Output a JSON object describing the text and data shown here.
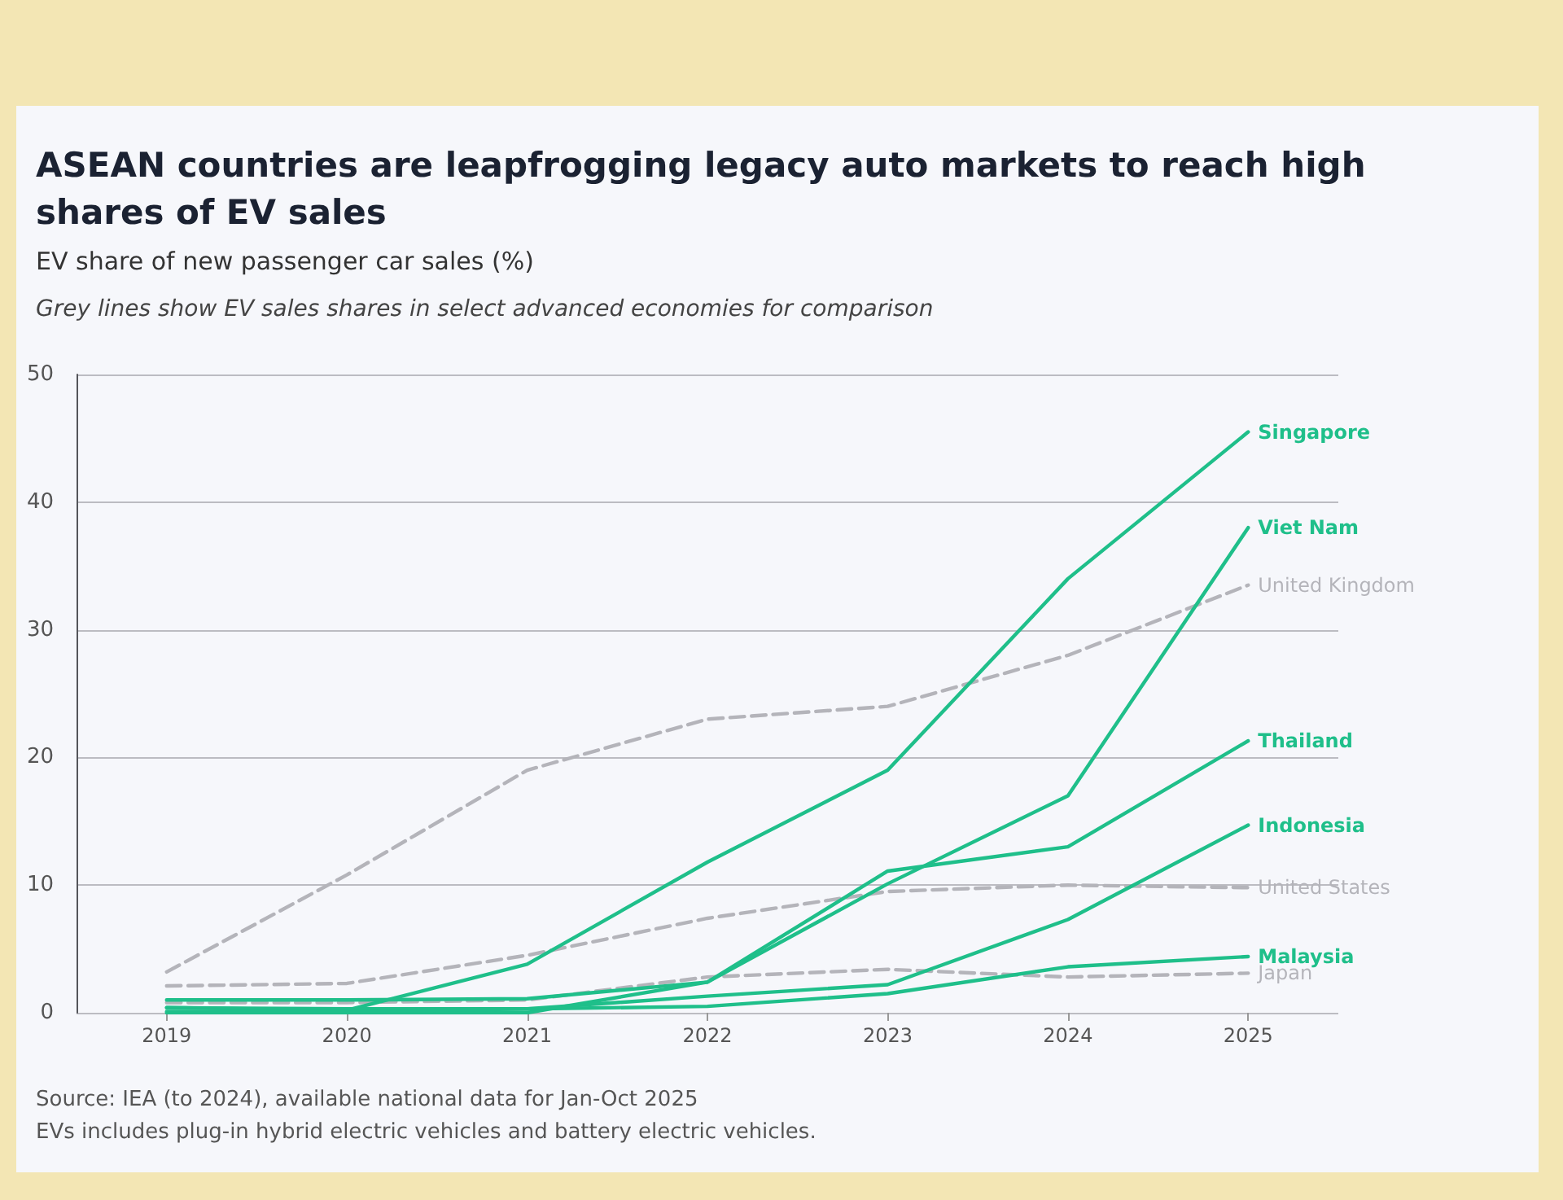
{
  "chart_data": {
    "type": "line",
    "title": "ASEAN countries are leapfrogging legacy auto markets to reach high shares of EV sales",
    "ylabel": "EV share of new passenger car sales (%)",
    "subtitle": "Grey lines show EV sales shares in select advanced economies for comparison",
    "annotations": [
      "Source: IEA (to 2024), available national data for Jan-Oct 2025",
      "EVs includes plug-in hybrid electric vehicles and battery electric vehicles."
    ],
    "x": [
      2019,
      2020,
      2021,
      2022,
      2023,
      2024,
      2025
    ],
    "xlim": [
      2018.5,
      2025.5
    ],
    "xticks": [
      2019,
      2020,
      2021,
      2022,
      2023,
      2024,
      2025
    ],
    "ylim": [
      0,
      50
    ],
    "yticks": [
      0,
      10,
      20,
      30,
      40,
      50
    ],
    "grid": "y",
    "legend": false,
    "marker": "none",
    "series": [
      {
        "name": "United Kingdom",
        "color": "#b4b4ba",
        "line_style": "dashed",
        "values": [
          3.2,
          10.8,
          19,
          23,
          24,
          28,
          33.5
        ]
      },
      {
        "name": "United States",
        "color": "#b4b4ba",
        "line_style": "dashed",
        "values": [
          2.1,
          2.3,
          4.5,
          7.4,
          9.5,
          10,
          9.8
        ]
      },
      {
        "name": "Japan",
        "color": "#b4b4ba",
        "line_style": "dashed",
        "values": [
          0.8,
          0.8,
          1,
          2.8,
          3.4,
          2.8,
          3.1
        ]
      },
      {
        "name": "Singapore",
        "color": "#1fbf8a",
        "line_style": "solid",
        "values": [
          0.4,
          0.2,
          3.8,
          11.8,
          19,
          34,
          45.5
        ]
      },
      {
        "name": "Viet Nam",
        "color": "#1fbf8a",
        "line_style": "solid",
        "values": [
          0,
          0,
          0,
          2.4,
          10.1,
          17,
          38
        ]
      },
      {
        "name": "Thailand",
        "color": "#1fbf8a",
        "line_style": "solid",
        "values": [
          1,
          1,
          1.1,
          2.4,
          11.1,
          13,
          21.3
        ]
      },
      {
        "name": "Indonesia",
        "color": "#1fbf8a",
        "line_style": "solid",
        "values": [
          0.4,
          0.3,
          0.3,
          1.3,
          2.2,
          7.3,
          14.7
        ]
      },
      {
        "name": "Malaysia",
        "color": "#1fbf8a",
        "line_style": "solid",
        "values": [
          0.1,
          0.1,
          0.3,
          0.5,
          1.5,
          3.6,
          4.4
        ]
      }
    ]
  }
}
